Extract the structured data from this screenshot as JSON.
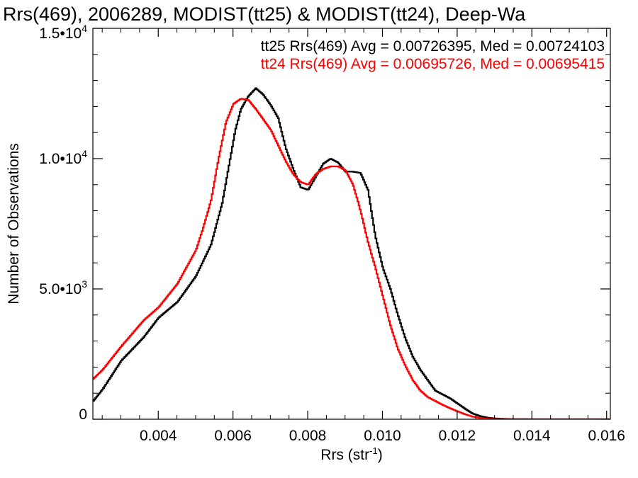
{
  "chart_data": {
    "type": "line",
    "step": true,
    "title": "Rrs(469), 2006289, MODIST(tt25) & MODIST(tt24), Deep-Wa",
    "xlabel_base": "Rrs (str",
    "xlabel_sup": "-1",
    "xlabel_end": ")",
    "ylabel": "Number of Observations",
    "xlim": [
      0.00225,
      0.0161
    ],
    "ylim": [
      0,
      15000
    ],
    "grid": false,
    "legend_position": "top-right",
    "x_ticks": [
      {
        "value": 0.004,
        "label": "0.004"
      },
      {
        "value": 0.006,
        "label": "0.006"
      },
      {
        "value": 0.008,
        "label": "0.008"
      },
      {
        "value": 0.01,
        "label": "0.010"
      },
      {
        "value": 0.012,
        "label": "0.012"
      },
      {
        "value": 0.014,
        "label": "0.014"
      },
      {
        "value": 0.016,
        "label": "0.016"
      }
    ],
    "y_ticks": [
      {
        "value": 0,
        "mantissa": "0",
        "exponent": ""
      },
      {
        "value": 5000,
        "mantissa": "5.0•10",
        "exponent": "3"
      },
      {
        "value": 10000,
        "mantissa": "1.0•10",
        "exponent": "4"
      },
      {
        "value": 15000,
        "mantissa": "1.5•10",
        "exponent": "4"
      }
    ],
    "series": [
      {
        "legend": "tt25 Rrs(469) Avg = 0.00726395, Med = 0.00724103",
        "color": "#000000",
        "points": [
          [
            0.00225,
            700
          ],
          [
            0.0025,
            1150
          ],
          [
            0.00275,
            1700
          ],
          [
            0.003,
            2250
          ],
          [
            0.0033,
            2700
          ],
          [
            0.0036,
            3150
          ],
          [
            0.004,
            3900
          ],
          [
            0.0045,
            4500
          ],
          [
            0.005,
            5500
          ],
          [
            0.0054,
            6700
          ],
          [
            0.0057,
            8300
          ],
          [
            0.0059,
            9900
          ],
          [
            0.00605,
            11100
          ],
          [
            0.0062,
            11900
          ],
          [
            0.0064,
            12400
          ],
          [
            0.0066,
            12700
          ],
          [
            0.0068,
            12450
          ],
          [
            0.007,
            12050
          ],
          [
            0.0072,
            11550
          ],
          [
            0.0074,
            10400
          ],
          [
            0.0076,
            9600
          ],
          [
            0.0078,
            8900
          ],
          [
            0.008,
            8800
          ],
          [
            0.0082,
            9300
          ],
          [
            0.0084,
            9800
          ],
          [
            0.0086,
            10000
          ],
          [
            0.0088,
            9850
          ],
          [
            0.009,
            9500
          ],
          [
            0.0092,
            9500
          ],
          [
            0.0094,
            9450
          ],
          [
            0.0096,
            8800
          ],
          [
            0.0098,
            7000
          ],
          [
            0.01,
            5800
          ],
          [
            0.0102,
            5000
          ],
          [
            0.0104,
            4000
          ],
          [
            0.0106,
            3100
          ],
          [
            0.0108,
            2400
          ],
          [
            0.011,
            1900
          ],
          [
            0.0112,
            1500
          ],
          [
            0.0114,
            1100
          ],
          [
            0.0116,
            950
          ],
          [
            0.0118,
            800
          ],
          [
            0.012,
            600
          ],
          [
            0.0122,
            400
          ],
          [
            0.0124,
            220
          ],
          [
            0.0126,
            120
          ],
          [
            0.0128,
            60
          ],
          [
            0.013,
            30
          ],
          [
            0.0132,
            15
          ],
          [
            0.0135,
            5
          ],
          [
            0.014,
            0
          ],
          [
            0.0161,
            0
          ]
        ]
      },
      {
        "legend": "tt24 Rrs(469) Avg = 0.00695726, Med = 0.00695415",
        "color": "#ff0000",
        "points": [
          [
            0.00225,
            1550
          ],
          [
            0.0025,
            1900
          ],
          [
            0.00275,
            2350
          ],
          [
            0.003,
            2800
          ],
          [
            0.0033,
            3300
          ],
          [
            0.0036,
            3800
          ],
          [
            0.004,
            4300
          ],
          [
            0.0045,
            5200
          ],
          [
            0.005,
            6500
          ],
          [
            0.0052,
            7400
          ],
          [
            0.0054,
            8400
          ],
          [
            0.0056,
            10000
          ],
          [
            0.0058,
            11400
          ],
          [
            0.006,
            12100
          ],
          [
            0.0062,
            12300
          ],
          [
            0.0064,
            12250
          ],
          [
            0.0066,
            11900
          ],
          [
            0.0068,
            11500
          ],
          [
            0.007,
            11100
          ],
          [
            0.0072,
            10500
          ],
          [
            0.0074,
            9900
          ],
          [
            0.0076,
            9400
          ],
          [
            0.0078,
            9100
          ],
          [
            0.008,
            9000
          ],
          [
            0.0082,
            9400
          ],
          [
            0.0084,
            9600
          ],
          [
            0.0086,
            9700
          ],
          [
            0.0088,
            9700
          ],
          [
            0.009,
            9550
          ],
          [
            0.0092,
            9000
          ],
          [
            0.0094,
            8000
          ],
          [
            0.0096,
            6800
          ],
          [
            0.0098,
            5800
          ],
          [
            0.01,
            4700
          ],
          [
            0.0102,
            3600
          ],
          [
            0.0104,
            2700
          ],
          [
            0.0106,
            2050
          ],
          [
            0.0108,
            1500
          ],
          [
            0.011,
            1100
          ],
          [
            0.0112,
            850
          ],
          [
            0.0114,
            700
          ],
          [
            0.0116,
            550
          ],
          [
            0.0118,
            420
          ],
          [
            0.012,
            300
          ],
          [
            0.0122,
            190
          ],
          [
            0.0124,
            100
          ],
          [
            0.0126,
            50
          ],
          [
            0.0128,
            20
          ],
          [
            0.013,
            8
          ],
          [
            0.0135,
            0
          ],
          [
            0.0161,
            0
          ]
        ]
      }
    ]
  }
}
